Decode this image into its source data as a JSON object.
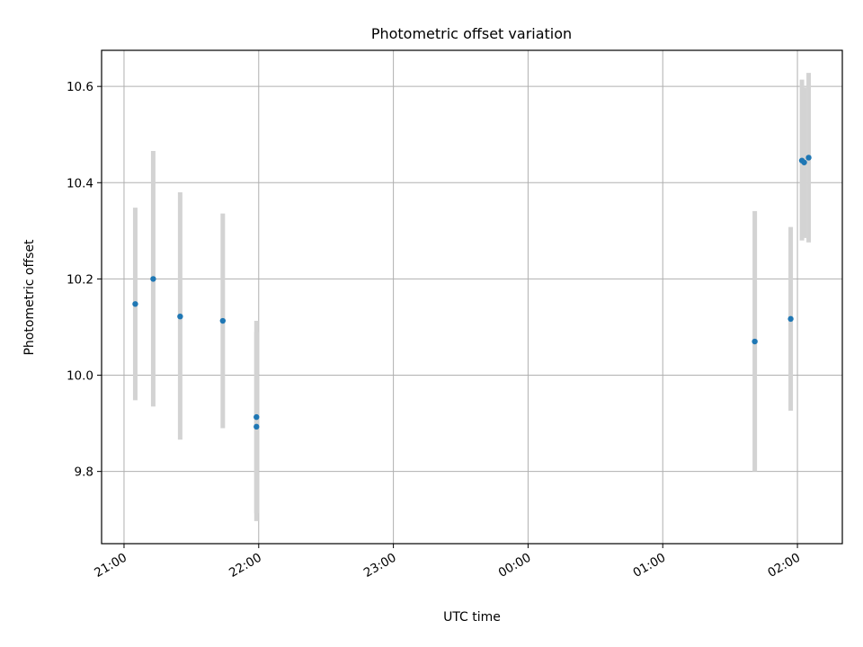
{
  "chart_data": {
    "type": "scatter",
    "title": "Photometric offset variation",
    "xlabel": "UTC time",
    "ylabel": "Photometric offset",
    "x_tick_labels": [
      "21:00",
      "22:00",
      "23:00",
      "00:00",
      "01:00",
      "02:00"
    ],
    "y_tick_labels": [
      "9.8",
      "10.0",
      "10.2",
      "10.4",
      "10.6"
    ],
    "y_ticks": [
      9.8,
      10.0,
      10.2,
      10.4,
      10.6
    ],
    "x_range_utc": [
      "20:50",
      "02:20"
    ],
    "ylim": [
      9.65,
      10.675
    ],
    "grid": true,
    "errorbar_color": "#d3d3d3",
    "point_color": "#1f77b4",
    "points": [
      {
        "x": "21:05",
        "y": 10.148,
        "err_low": 9.948,
        "err_high": 10.348
      },
      {
        "x": "21:13",
        "y": 10.2,
        "err_low": 9.935,
        "err_high": 10.466
      },
      {
        "x": "21:25",
        "y": 10.122,
        "err_low": 9.866,
        "err_high": 10.38
      },
      {
        "x": "21:44",
        "y": 10.113,
        "err_low": 9.89,
        "err_high": 10.336
      },
      {
        "x": "21:59",
        "y": 9.913,
        "err_low": 9.713,
        "err_high": 10.113
      },
      {
        "x": "21:59",
        "y": 9.893,
        "err_low": 9.697,
        "err_high": 10.09
      },
      {
        "x": "01:41",
        "y": 10.07,
        "err_low": 9.8,
        "err_high": 10.341
      },
      {
        "x": "01:57",
        "y": 10.117,
        "err_low": 9.926,
        "err_high": 10.308
      },
      {
        "x": "02:02",
        "y": 10.446,
        "err_low": 10.28,
        "err_high": 10.614
      },
      {
        "x": "02:03",
        "y": 10.442,
        "err_low": 10.285,
        "err_high": 10.598
      },
      {
        "x": "02:05",
        "y": 10.452,
        "err_low": 10.276,
        "err_high": 10.628
      }
    ]
  }
}
